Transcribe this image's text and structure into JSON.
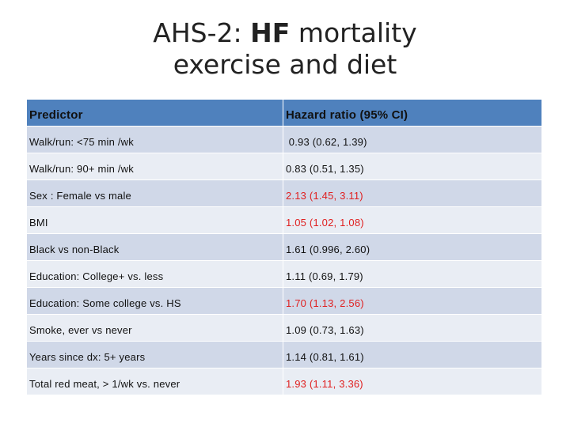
{
  "title": {
    "line1_prefix": "AHS-2: ",
    "line1_bold": "HF",
    "line1_suffix": " mortality",
    "line2": "exercise and diet"
  },
  "table": {
    "headers": {
      "predictor": "Predictor",
      "hazard_ratio": "Hazard ratio (95% CI)"
    },
    "rows": [
      {
        "predictor": "Walk/run: <75 min /wk",
        "hr": " 0.93 (0.62, 1.39)",
        "highlight": false
      },
      {
        "predictor": "Walk/run: 90+ min /wk",
        "hr": "0.83 (0.51, 1.35)",
        "highlight": false
      },
      {
        "predictor": "Sex : Female vs male",
        "hr": "2.13 (1.45, 3.11)",
        "highlight": true
      },
      {
        "predictor": "BMI",
        "hr": "1.05 (1.02, 1.08)",
        "highlight": true
      },
      {
        "predictor": "Black vs non-Black",
        "hr": "1.61 (0.996, 2.60)",
        "highlight": false
      },
      {
        "predictor": "Education: College+ vs. less",
        "hr": "1.11 (0.69, 1.79)",
        "highlight": false
      },
      {
        "predictor": "Education: Some college vs. HS",
        "hr": "1.70 (1.13, 2.56)",
        "highlight": true
      },
      {
        "predictor": "Smoke, ever vs never",
        "hr": "1.09 (0.73, 1.63)",
        "highlight": false
      },
      {
        "predictor": "Years since dx: 5+ years",
        "hr": "1.14 (0.81, 1.61)",
        "highlight": false
      },
      {
        "predictor": "Total red meat, > 1/wk vs. never",
        "hr": "1.93 (1.11, 3.36)",
        "highlight": true
      }
    ]
  },
  "colors": {
    "header_bg": "#4f81bd",
    "row_odd_bg": "#d0d8e8",
    "row_even_bg": "#e9edf4",
    "significant": "#e02020"
  }
}
